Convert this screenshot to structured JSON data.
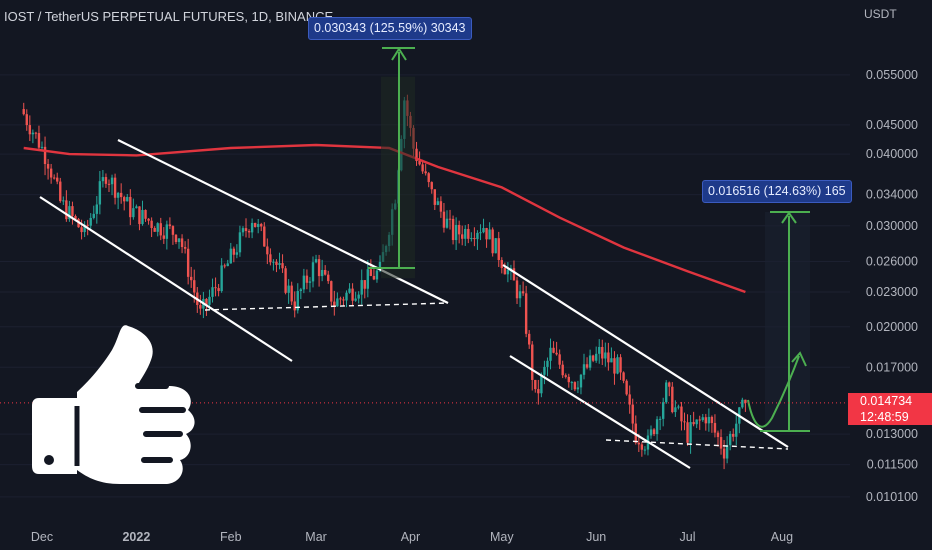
{
  "header": {
    "title": "IOST / TetherUS PERPETUAL FUTURES, 1D, BINANCE"
  },
  "price_axis": {
    "unit_label": "USDT",
    "ticks": [
      "0.055000",
      "0.045000",
      "0.040000",
      "0.034000",
      "0.030000",
      "0.026000",
      "0.023000",
      "0.020000",
      "0.017000",
      "0.013000",
      "0.011500",
      "0.010100"
    ]
  },
  "time_axis": {
    "ticks": [
      "Dec",
      "2022",
      "Feb",
      "Mar",
      "Apr",
      "May",
      "Jun",
      "Jul",
      "Aug"
    ]
  },
  "callouts": {
    "upper": "0.030343 (125.59%) 30343",
    "lower": "0.016516 (124.63%) 165"
  },
  "last_price": {
    "value": "0.014734",
    "countdown": "12:48:59"
  },
  "colors": {
    "background": "#131722",
    "up": "#26a69a",
    "down": "#ef5350",
    "moving_average": "#e0353f",
    "measure": "#4caf50",
    "trendline": "#ffffff",
    "last_price": "#f23645"
  },
  "icons": {
    "overlay": "thumbs-up-icon"
  },
  "chart_data": {
    "type": "candlestick",
    "symbol": "IOST / TetherUS PERPETUAL FUTURES",
    "interval": "1D",
    "exchange": "BINANCE",
    "y_scale": "log",
    "ylim": [
      0.0097,
      0.062
    ],
    "y_unit": "USDT",
    "x_ticks": [
      "Dec",
      "2022",
      "Feb",
      "Mar",
      "Apr",
      "May",
      "Jun",
      "Jul",
      "Aug"
    ],
    "y_ticks": [
      0.055,
      0.045,
      0.04,
      0.034,
      0.03,
      0.026,
      0.023,
      0.02,
      0.017,
      0.013,
      0.0115,
      0.0101
    ],
    "price_path": [
      {
        "x": "Nov 25",
        "close": 0.047
      },
      {
        "x": "Nov 30",
        "close": 0.042
      },
      {
        "x": "Dec 3",
        "close": 0.039
      },
      {
        "x": "Dec 7",
        "close": 0.033
      },
      {
        "x": "Dec 15",
        "close": 0.029
      },
      {
        "x": "Dec 22",
        "close": 0.037
      },
      {
        "x": "Dec 30",
        "close": 0.032
      },
      {
        "x": "Jan 8",
        "close": 0.03
      },
      {
        "x": "Jan 15",
        "close": 0.029
      },
      {
        "x": "Jan 22",
        "close": 0.021
      },
      {
        "x": "Jan 28",
        "close": 0.024
      },
      {
        "x": "Feb 8",
        "close": 0.031
      },
      {
        "x": "Feb 14",
        "close": 0.027
      },
      {
        "x": "Feb 22",
        "close": 0.022
      },
      {
        "x": "Mar 1",
        "close": 0.026
      },
      {
        "x": "Mar 7",
        "close": 0.022
      },
      {
        "x": "Mar 12",
        "close": 0.023
      },
      {
        "x": "Mar 22",
        "close": 0.025
      },
      {
        "x": "Mar 27",
        "close": 0.034
      },
      {
        "x": "Mar 30",
        "close": 0.05
      },
      {
        "x": "Apr 2",
        "close": 0.041
      },
      {
        "x": "Apr 8",
        "close": 0.034
      },
      {
        "x": "Apr 15",
        "close": 0.029
      },
      {
        "x": "Apr 25",
        "close": 0.03
      },
      {
        "x": "May 3",
        "close": 0.025
      },
      {
        "x": "May 8",
        "close": 0.022
      },
      {
        "x": "May 12",
        "close": 0.015
      },
      {
        "x": "May 17",
        "close": 0.018
      },
      {
        "x": "May 25",
        "close": 0.016
      },
      {
        "x": "Jun 2",
        "close": 0.018
      },
      {
        "x": "Jun 8",
        "close": 0.017
      },
      {
        "x": "Jun 14",
        "close": 0.013
      },
      {
        "x": "Jun 18",
        "close": 0.0125
      },
      {
        "x": "Jun 24",
        "close": 0.0155
      },
      {
        "x": "Jul 1",
        "close": 0.013
      },
      {
        "x": "Jul 7",
        "close": 0.014
      },
      {
        "x": "Jul 13",
        "close": 0.0122
      },
      {
        "x": "Jul 20",
        "close": 0.014734
      }
    ],
    "moving_average": [
      {
        "x": "Nov 25",
        "value": 0.041
      },
      {
        "x": "Dec 10",
        "value": 0.04
      },
      {
        "x": "Jan 1",
        "value": 0.0398
      },
      {
        "x": "Feb 1",
        "value": 0.041
      },
      {
        "x": "Mar 1",
        "value": 0.0415
      },
      {
        "x": "Mar 25",
        "value": 0.041
      },
      {
        "x": "Apr 10",
        "value": 0.038
      },
      {
        "x": "May 1",
        "value": 0.035
      },
      {
        "x": "May 20",
        "value": 0.031
      },
      {
        "x": "Jun 10",
        "value": 0.0275
      },
      {
        "x": "Jul 1",
        "value": 0.025
      },
      {
        "x": "Jul 20",
        "value": 0.023
      }
    ],
    "measurements": [
      {
        "label": "0.030343 (125.59%) 30343",
        "from": 0.0243,
        "to": 0.0546
      },
      {
        "label": "0.016516 (124.63%) 165",
        "from": 0.0132,
        "to": 0.0297
      }
    ],
    "last_price": 0.014734,
    "countdown": "12:48:59"
  }
}
